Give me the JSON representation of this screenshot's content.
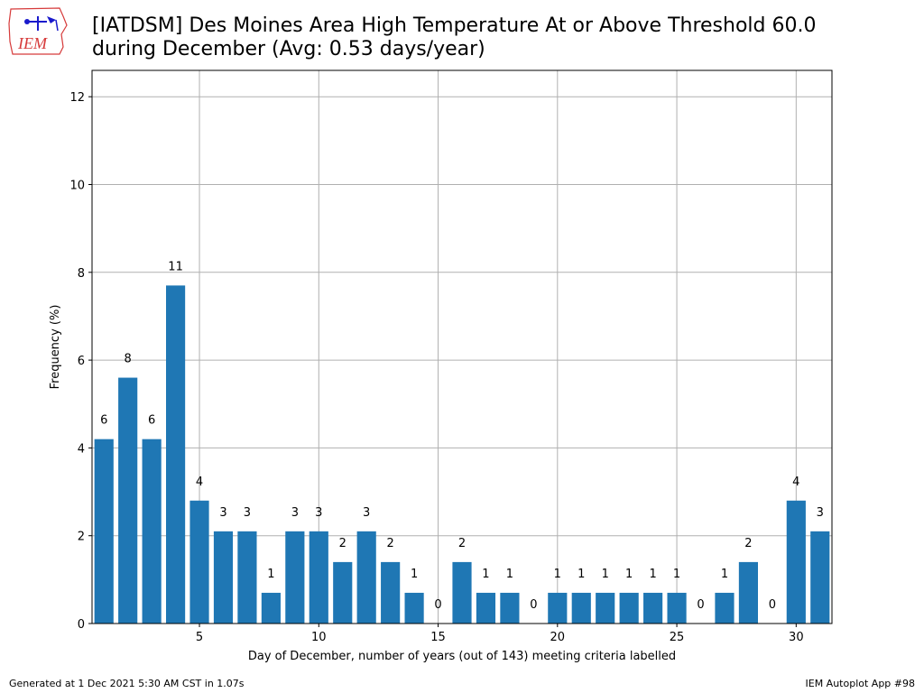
{
  "header": {
    "logo_text": "IEM",
    "title_line1": "[IATDSM] Des Moines Area High Temperature At or Above Threshold 60.0",
    "title_line2": "during December (Avg: 0.53 days/year)"
  },
  "footer": {
    "left": "Generated at 1 Dec 2021 5:30 AM CST in 1.07s",
    "right": "IEM Autoplot App #98"
  },
  "colors": {
    "bar": "#1f77b4",
    "grid": "#b0b0b0",
    "logo_red": "#d63a3a",
    "logo_blue": "#1a1acc"
  },
  "chart_data": {
    "type": "bar",
    "xlabel": "Day of December, number of years (out of 143) meeting criteria labelled",
    "ylabel": "Frequency (%)",
    "xlim": [
      0.5,
      31.5
    ],
    "ylim": [
      0,
      12.6
    ],
    "xticks": [
      5,
      10,
      15,
      20,
      25,
      30
    ],
    "yticks": [
      0,
      2,
      4,
      6,
      8,
      10,
      12
    ],
    "grid": true,
    "days": [
      1,
      2,
      3,
      4,
      5,
      6,
      7,
      8,
      9,
      10,
      11,
      12,
      13,
      14,
      15,
      16,
      17,
      18,
      19,
      20,
      21,
      22,
      23,
      24,
      25,
      26,
      27,
      28,
      29,
      30,
      31
    ],
    "counts": [
      6,
      8,
      6,
      11,
      4,
      3,
      3,
      1,
      3,
      3,
      2,
      3,
      2,
      1,
      0,
      2,
      1,
      1,
      0,
      1,
      1,
      1,
      1,
      1,
      1,
      0,
      1,
      2,
      0,
      4,
      3
    ],
    "values": [
      4.2,
      5.6,
      4.2,
      7.7,
      2.8,
      2.1,
      2.1,
      0.7,
      2.1,
      2.1,
      1.4,
      2.1,
      1.4,
      0.7,
      0,
      1.4,
      0.7,
      0.7,
      0,
      0.7,
      0.7,
      0.7,
      0.7,
      0.7,
      0.7,
      0,
      0.7,
      1.4,
      0,
      2.8,
      2.1
    ]
  }
}
